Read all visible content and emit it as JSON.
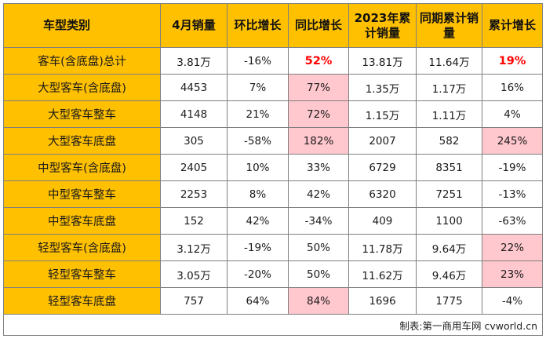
{
  "headers": [
    "车型类别",
    "4月销量",
    "环比增长",
    "同比增长",
    "2023年累计销量",
    "同期累计销量",
    "累计增长"
  ],
  "rows": [
    [
      "客车(含底盘)总计",
      "3.81万",
      "-16%",
      "52%",
      "13.81万",
      "11.64万",
      "19%"
    ],
    [
      "大型客车(含底盘)",
      "4453",
      "7%",
      "77%",
      "1.35万",
      "1.17万",
      "16%"
    ],
    [
      "大型客车整车",
      "4148",
      "21%",
      "72%",
      "1.15万",
      "1.11万",
      "4%"
    ],
    [
      "大型客车底盘",
      "305",
      "-58%",
      "182%",
      "2007",
      "582",
      "245%"
    ],
    [
      "中型客车(含底盘)",
      "2405",
      "10%",
      "33%",
      "6729",
      "8351",
      "-19%"
    ],
    [
      "中型客车整车",
      "2253",
      "8%",
      "42%",
      "6320",
      "7251",
      "-13%"
    ],
    [
      "中型客车底盘",
      "152",
      "42%",
      "-34%",
      "409",
      "1100",
      "-63%"
    ],
    [
      "轻型客车(含底盘)",
      "3.12万",
      "-19%",
      "50%",
      "11.78万",
      "9.64万",
      "22%"
    ],
    [
      "轻型客车整车",
      "3.05万",
      "-20%",
      "50%",
      "11.62万",
      "9.46万",
      "23%"
    ],
    [
      "轻型客车底盘",
      "757",
      "64%",
      "84%",
      "1696",
      "1775",
      "-4%"
    ]
  ],
  "footer": "制表:第一商用车网 cvworld.cn",
  "colors": {
    "header_bg": "#ffc000",
    "highlight_bg": "#ffc7ce",
    "emphasis_text": "#ff0000"
  }
}
